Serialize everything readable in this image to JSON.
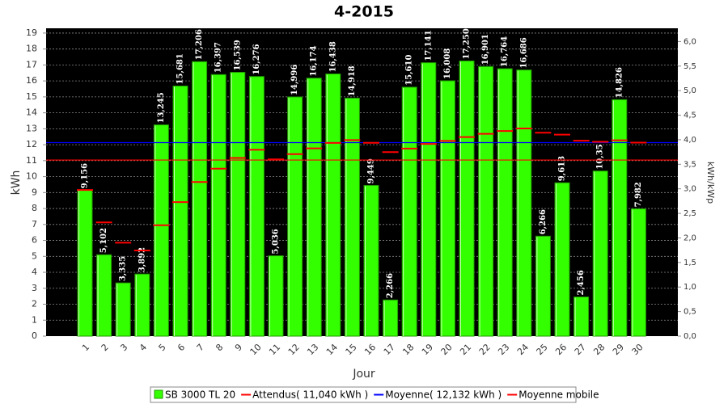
{
  "chart_data": {
    "type": "bar",
    "title": "4-2015",
    "xlabel": "Jour",
    "ylabel": "kWh",
    "y2label": "kWh/kWp",
    "categories": [
      "1",
      "2",
      "3",
      "4",
      "5",
      "6",
      "7",
      "8",
      "9",
      "10",
      "11",
      "12",
      "13",
      "14",
      "15",
      "16",
      "17",
      "18",
      "19",
      "20",
      "21",
      "22",
      "23",
      "24",
      "25",
      "26",
      "27",
      "28",
      "29",
      "30"
    ],
    "ylim": [
      0,
      19.3
    ],
    "yticks": [
      0,
      1,
      2,
      3,
      4,
      5,
      6,
      7,
      8,
      9,
      10,
      11,
      12,
      13,
      14,
      15,
      16,
      17,
      18,
      19
    ],
    "y2lim": [
      0,
      6.27
    ],
    "y2ticks": [
      {
        "value": 0,
        "label": "0,0"
      },
      {
        "value": 0.5,
        "label": "0,5"
      },
      {
        "value": 1,
        "label": "1,0"
      },
      {
        "value": 1.5,
        "label": "1,5"
      },
      {
        "value": 2,
        "label": "2,0"
      },
      {
        "value": 2.5,
        "label": "2,5"
      },
      {
        "value": 3,
        "label": "3,0"
      },
      {
        "value": 3.5,
        "label": "3,5"
      },
      {
        "value": 4,
        "label": "4,0"
      },
      {
        "value": 4.5,
        "label": "4,5"
      },
      {
        "value": 5,
        "label": "5,0"
      },
      {
        "value": 5.5,
        "label": "5,5"
      },
      {
        "value": 6,
        "label": "6,0"
      }
    ],
    "grid": true,
    "series": [
      {
        "name": "SB 3000 TL 20",
        "color": "#33ff00",
        "type": "bar",
        "values": [
          9.156,
          5.102,
          3.335,
          3.892,
          13.245,
          15.681,
          17.206,
          16.397,
          16.539,
          16.276,
          5.036,
          14.996,
          16.174,
          16.438,
          14.918,
          9.449,
          2.266,
          15.61,
          17.141,
          16.008,
          17.25,
          16.901,
          16.764,
          16.686,
          6.266,
          9.613,
          2.456,
          10.35,
          14.826,
          7.982
        ],
        "value_labels": [
          "9,156",
          "5,102",
          "3,335",
          "3,892",
          "13,245",
          "15,681",
          "17,206",
          "16,397",
          "16,539",
          "16,276",
          "5,036",
          "14,996",
          "16,174",
          "16,438",
          "14,918",
          "9,449",
          "2,266",
          "15,610",
          "17,141",
          "16,008",
          "17,250",
          "16,901",
          "16,764",
          "16,686",
          "6,266",
          "9,613",
          "2,456",
          "10,35",
          "14,826",
          "7,982"
        ]
      },
      {
        "name": "Attendus( 11,040 kWh )",
        "color": "#ff0000",
        "type": "hline",
        "value": 11.04
      },
      {
        "name": "Moyenne( 12,132 kWh )",
        "color": "#0000ff",
        "type": "hline",
        "value": 12.132
      },
      {
        "name": "Moyenne mobile",
        "color": "#ff0000",
        "type": "step",
        "values": [
          9.16,
          7.13,
          5.86,
          5.37,
          6.95,
          8.4,
          9.66,
          10.5,
          11.17,
          11.68,
          11.08,
          11.41,
          11.77,
          12.11,
          12.29,
          12.12,
          11.54,
          11.76,
          12.05,
          12.24,
          12.48,
          12.68,
          12.86,
          13.02,
          12.75,
          12.63,
          12.25,
          12.18,
          12.28,
          12.13
        ]
      }
    ]
  }
}
